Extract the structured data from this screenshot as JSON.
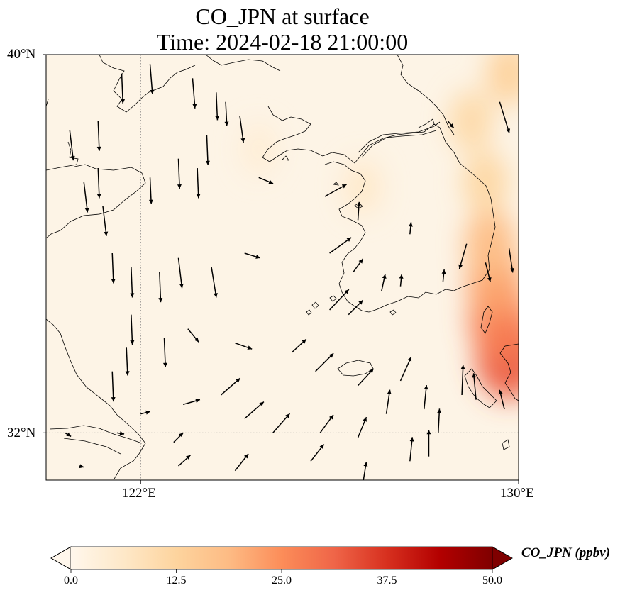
{
  "title": {
    "line1": "CO_JPN at surface",
    "line2": "Time: 2024-02-18 21:00:00"
  },
  "map": {
    "lon_range": [
      120,
      130
    ],
    "lat_range": [
      31,
      40
    ],
    "lat_ticks": [
      {
        "value": 40,
        "label": "40°N"
      },
      {
        "value": 32,
        "label": "32°N"
      }
    ],
    "lon_ticks": [
      {
        "value": 122,
        "label": "122°E"
      },
      {
        "value": 130,
        "label": "130°E"
      }
    ],
    "gridlines": "dotted",
    "background_color": "#fdf4e6",
    "coastline_color": "#000000",
    "vector_color": "#000000"
  },
  "colorbar": {
    "label": "CO_JPN (ppbv)",
    "colormap": "OrRd",
    "min": 0.0,
    "max": 50.0,
    "extend": "both",
    "ticks": [
      "0.0",
      "12.5",
      "25.0",
      "37.5",
      "50.0"
    ],
    "stops": [
      "#fff7ec",
      "#fee8c8",
      "#fdd49e",
      "#fdbb84",
      "#fc8d59",
      "#ef6548",
      "#d7301f",
      "#b30000",
      "#7f0000"
    ]
  },
  "concentration_hotspots": [
    {
      "lon": 129.8,
      "lat": 33.6,
      "ppbv": 32
    },
    {
      "lon": 129.6,
      "lat": 34.4,
      "ppbv": 27
    },
    {
      "lon": 129.5,
      "lat": 35.2,
      "ppbv": 22
    },
    {
      "lon": 129.4,
      "lat": 36.0,
      "ppbv": 18
    },
    {
      "lon": 129.3,
      "lat": 37.3,
      "ppbv": 12
    },
    {
      "lon": 129.0,
      "lat": 38.6,
      "ppbv": 11
    },
    {
      "lon": 129.8,
      "lat": 39.6,
      "ppbv": 13
    },
    {
      "lon": 126.7,
      "lat": 37.2,
      "ppbv": 6
    },
    {
      "lon": 124.5,
      "lat": 38.0,
      "ppbv": 4
    }
  ],
  "wind_vectors": [
    {
      "lon": 121.6,
      "lat": 39.6,
      "u": 0.1,
      "v": -2.5
    },
    {
      "lon": 121.1,
      "lat": 38.6,
      "u": 0.1,
      "v": -2.5
    },
    {
      "lon": 121.1,
      "lat": 37.6,
      "u": 0.1,
      "v": -2.5
    },
    {
      "lon": 120.5,
      "lat": 38.4,
      "u": 0.3,
      "v": -2.5
    },
    {
      "lon": 120.8,
      "lat": 37.3,
      "u": 0.3,
      "v": -2.5
    },
    {
      "lon": 121.2,
      "lat": 36.8,
      "u": 0.3,
      "v": -2.5
    },
    {
      "lon": 122.2,
      "lat": 39.8,
      "u": 0.2,
      "v": -2.5
    },
    {
      "lon": 123.1,
      "lat": 39.5,
      "u": 0.2,
      "v": -2.5
    },
    {
      "lon": 123.6,
      "lat": 39.2,
      "u": 0.1,
      "v": -2.3
    },
    {
      "lon": 122.8,
      "lat": 37.8,
      "u": 0.1,
      "v": -2.5
    },
    {
      "lon": 123.2,
      "lat": 37.6,
      "u": 0.1,
      "v": -2.5
    },
    {
      "lon": 123.4,
      "lat": 38.3,
      "u": 0.1,
      "v": -2.5
    },
    {
      "lon": 122.2,
      "lat": 37.4,
      "u": 0.1,
      "v": -2.2
    },
    {
      "lon": 123.8,
      "lat": 39.0,
      "u": 0.1,
      "v": -2.0
    },
    {
      "lon": 124.1,
      "lat": 38.7,
      "u": 0.3,
      "v": -2.2
    },
    {
      "lon": 124.5,
      "lat": 37.4,
      "u": 1.2,
      "v": -0.5
    },
    {
      "lon": 121.4,
      "lat": 35.8,
      "u": 0.1,
      "v": -2.5
    },
    {
      "lon": 121.8,
      "lat": 35.5,
      "u": 0.1,
      "v": -2.5
    },
    {
      "lon": 122.4,
      "lat": 35.4,
      "u": 0.1,
      "v": -2.5
    },
    {
      "lon": 122.8,
      "lat": 35.7,
      "u": 0.3,
      "v": -2.5
    },
    {
      "lon": 123.5,
      "lat": 35.5,
      "u": 0.4,
      "v": -2.5
    },
    {
      "lon": 124.2,
      "lat": 35.8,
      "u": 1.3,
      "v": -0.4
    },
    {
      "lon": 122.5,
      "lat": 34.0,
      "u": 0.1,
      "v": -2.4
    },
    {
      "lon": 121.8,
      "lat": 34.5,
      "u": 0.1,
      "v": -2.5
    },
    {
      "lon": 121.4,
      "lat": 33.3,
      "u": 0.1,
      "v": -2.5
    },
    {
      "lon": 123.0,
      "lat": 34.2,
      "u": 0.9,
      "v": -1.1
    },
    {
      "lon": 124.0,
      "lat": 33.9,
      "u": 1.4,
      "v": -0.5
    },
    {
      "lon": 125.9,
      "lat": 37.0,
      "u": 1.8,
      "v": 1.0
    },
    {
      "lon": 126.0,
      "lat": 35.8,
      "u": 1.8,
      "v": 1.3
    },
    {
      "lon": 126.6,
      "lat": 36.5,
      "u": 0.1,
      "v": 1.5
    },
    {
      "lon": 127.1,
      "lat": 35.0,
      "u": 0.3,
      "v": 1.4
    },
    {
      "lon": 127.5,
      "lat": 35.1,
      "u": 0.1,
      "v": 1.0
    },
    {
      "lon": 127.7,
      "lat": 36.2,
      "u": 0.1,
      "v": 1.0
    },
    {
      "lon": 126.0,
      "lat": 34.6,
      "u": 1.6,
      "v": 1.7
    },
    {
      "lon": 126.4,
      "lat": 34.5,
      "u": 1.2,
      "v": 1.2
    },
    {
      "lon": 126.5,
      "lat": 35.4,
      "u": 0.8,
      "v": 1.1
    },
    {
      "lon": 122.0,
      "lat": 32.4,
      "u": 0.8,
      "v": 0.2
    },
    {
      "lon": 122.9,
      "lat": 32.6,
      "u": 1.4,
      "v": 0.4
    },
    {
      "lon": 123.7,
      "lat": 32.8,
      "u": 1.6,
      "v": 1.4
    },
    {
      "lon": 124.2,
      "lat": 32.3,
      "u": 1.6,
      "v": 1.4
    },
    {
      "lon": 124.8,
      "lat": 32.0,
      "u": 1.4,
      "v": 1.6
    },
    {
      "lon": 125.8,
      "lat": 32.0,
      "u": 1.1,
      "v": 1.5
    },
    {
      "lon": 126.6,
      "lat": 31.9,
      "u": 0.7,
      "v": 1.7
    },
    {
      "lon": 126.6,
      "lat": 33.0,
      "u": 1.3,
      "v": 1.4
    },
    {
      "lon": 127.2,
      "lat": 32.4,
      "u": 0.3,
      "v": 2.0
    },
    {
      "lon": 127.5,
      "lat": 33.1,
      "u": 0.9,
      "v": 2.0
    },
    {
      "lon": 128.0,
      "lat": 32.5,
      "u": 0.2,
      "v": 2.0
    },
    {
      "lon": 128.3,
      "lat": 32.0,
      "u": 0.1,
      "v": 2.0
    },
    {
      "lon": 125.2,
      "lat": 33.7,
      "u": 1.2,
      "v": 1.1
    },
    {
      "lon": 125.7,
      "lat": 33.3,
      "u": 1.5,
      "v": 1.5
    },
    {
      "lon": 122.8,
      "lat": 31.3,
      "u": 1.0,
      "v": 0.9
    },
    {
      "lon": 124.0,
      "lat": 31.2,
      "u": 1.1,
      "v": 1.4
    },
    {
      "lon": 125.6,
      "lat": 31.4,
      "u": 1.1,
      "v": 1.4
    },
    {
      "lon": 126.7,
      "lat": 30.9,
      "u": 0.3,
      "v": 1.9
    },
    {
      "lon": 127.7,
      "lat": 31.4,
      "u": 0.2,
      "v": 2.0
    },
    {
      "lon": 128.1,
      "lat": 31.5,
      "u": 0.0,
      "v": 2.2
    },
    {
      "lon": 128.8,
      "lat": 32.8,
      "u": 0.1,
      "v": 2.5
    },
    {
      "lon": 129.1,
      "lat": 32.7,
      "u": -0.2,
      "v": 2.2
    },
    {
      "lon": 129.7,
      "lat": 32.5,
      "u": -0.4,
      "v": 1.6
    },
    {
      "lon": 129.8,
      "lat": 35.9,
      "u": 0.3,
      "v": -2.0
    },
    {
      "lon": 129.6,
      "lat": 39.0,
      "u": 0.8,
      "v": -2.6
    },
    {
      "lon": 128.5,
      "lat": 38.6,
      "u": 0.5,
      "v": -0.6
    },
    {
      "lon": 128.9,
      "lat": 36.0,
      "u": -0.6,
      "v": -2.1
    },
    {
      "lon": 129.3,
      "lat": 35.6,
      "u": 0.4,
      "v": -1.6
    },
    {
      "lon": 128.4,
      "lat": 35.2,
      "u": 0.1,
      "v": 1.0
    },
    {
      "lon": 121.7,
      "lat": 33.8,
      "u": 0.1,
      "v": -2.3
    },
    {
      "lon": 121.5,
      "lat": 32.0,
      "u": 0.6,
      "v": -0.1
    },
    {
      "lon": 120.4,
      "lat": 32.0,
      "u": 0.5,
      "v": -0.3
    },
    {
      "lon": 122.7,
      "lat": 31.8,
      "u": 0.8,
      "v": 0.8
    },
    {
      "lon": 120.7,
      "lat": 31.3,
      "u": 0.4,
      "v": -0.1
    }
  ]
}
